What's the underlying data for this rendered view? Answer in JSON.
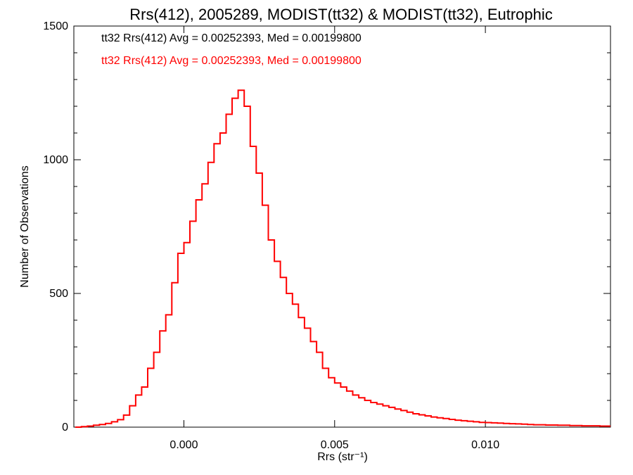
{
  "chart_data": {
    "type": "step",
    "title": "Rrs(412), 2005289, MODIST(tt32) & MODIST(tt32), Eutrophic",
    "xlabel": "Rrs (str⁻¹)",
    "ylabel": "Number of Observations",
    "xlim": [
      -0.00365,
      0.01415
    ],
    "ylim": [
      0,
      1500
    ],
    "x_ticks": [
      {
        "value": 0.0,
        "label": "0.000"
      },
      {
        "value": 0.005,
        "label": "0.005"
      },
      {
        "value": 0.01,
        "label": "0.010"
      }
    ],
    "y_ticks": [
      {
        "value": 0,
        "label": "0"
      },
      {
        "value": 500,
        "label": "500"
      },
      {
        "value": 1000,
        "label": "1000"
      },
      {
        "value": 1500,
        "label": "1500"
      }
    ],
    "annotations": [
      {
        "text": "tt32 Rrs(412) Avg = 0.00252393, Med = 0.00199800",
        "color": "#000000"
      },
      {
        "text": "tt32 Rrs(412) Avg = 0.00252393, Med = 0.00199800",
        "color": "#ff0000"
      }
    ],
    "series": [
      {
        "color": "#ff0000",
        "x": [
          -0.0036,
          -0.0034,
          -0.0032,
          -0.003,
          -0.0028,
          -0.0026,
          -0.0024,
          -0.0022,
          -0.002,
          -0.0018,
          -0.0016,
          -0.0014,
          -0.0012,
          -0.001,
          -0.0008,
          -0.0006,
          -0.0004,
          -0.0002,
          0.0,
          0.0002,
          0.0004,
          0.0006,
          0.0008,
          0.001,
          0.0012,
          0.0014,
          0.0016,
          0.0018,
          0.002,
          0.0022,
          0.0024,
          0.0026,
          0.0028,
          0.003,
          0.0032,
          0.0034,
          0.0036,
          0.0038,
          0.004,
          0.0042,
          0.0044,
          0.0046,
          0.0048,
          0.005,
          0.0052,
          0.0054,
          0.0056,
          0.0058,
          0.006,
          0.0062,
          0.0064,
          0.0066,
          0.0068,
          0.007,
          0.0072,
          0.0074,
          0.0076,
          0.0078,
          0.008,
          0.0082,
          0.0084,
          0.0086,
          0.0088,
          0.009,
          0.0092,
          0.0094,
          0.0096,
          0.0098,
          0.01,
          0.0102,
          0.0104,
          0.0106,
          0.0108,
          0.011,
          0.0112,
          0.0114,
          0.0116,
          0.0118,
          0.012,
          0.0122,
          0.0124,
          0.0126,
          0.0128,
          0.013,
          0.0132,
          0.0134,
          0.0136,
          0.0138,
          0.014
        ],
        "values": [
          0,
          2,
          4,
          7,
          10,
          14,
          20,
          28,
          45,
          80,
          120,
          150,
          220,
          280,
          360,
          420,
          540,
          650,
          690,
          770,
          850,
          910,
          990,
          1060,
          1100,
          1170,
          1230,
          1260,
          1200,
          1050,
          950,
          830,
          700,
          620,
          560,
          500,
          460,
          410,
          370,
          320,
          280,
          220,
          185,
          165,
          150,
          135,
          120,
          110,
          100,
          92,
          86,
          80,
          74,
          68,
          62,
          56,
          50,
          46,
          42,
          38,
          35,
          32,
          29,
          26,
          24,
          22,
          20,
          18,
          17,
          16,
          15,
          14,
          13,
          12,
          11,
          10,
          9,
          9,
          8,
          8,
          7,
          7,
          6,
          6,
          5,
          5,
          5,
          4,
          4
        ]
      }
    ],
    "grid": false,
    "legend": "none"
  }
}
